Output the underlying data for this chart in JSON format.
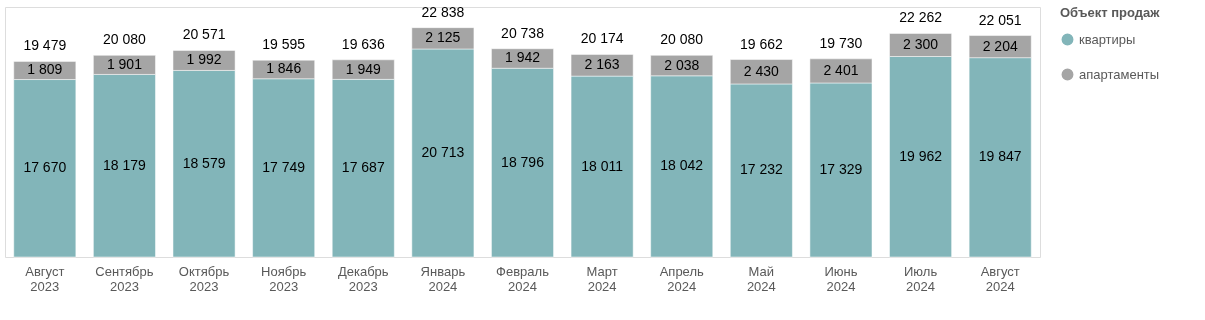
{
  "chart_data": {
    "type": "bar",
    "stacked": true,
    "data_labels": true,
    "legend": "right",
    "legend_title": "Объект продаж",
    "grid": false,
    "categories": [
      "Август 2023",
      "Сентябрь 2023",
      "Октябрь 2023",
      "Ноябрь 2023",
      "Декабрь 2023",
      "Январь 2024",
      "Февраль 2024",
      "Март 2024",
      "Апрель 2024",
      "Май 2024",
      "Июнь 2024",
      "Июль 2024",
      "Август 2024"
    ],
    "series": [
      {
        "name": "квартиры",
        "color": "#82b5b9",
        "values": [
          17670,
          18179,
          18579,
          17749,
          17687,
          20713,
          18796,
          18011,
          18042,
          17232,
          17329,
          19962,
          19847
        ]
      },
      {
        "name": "апартаменты",
        "color": "#a5a5a5",
        "values": [
          1809,
          1901,
          1992,
          1846,
          1949,
          2125,
          1942,
          2163,
          2038,
          2430,
          2401,
          2300,
          2204
        ]
      }
    ],
    "totals": [
      "19 479",
      "20 080",
      "20 571",
      "19 595",
      "19 636",
      "22 838",
      "20 738",
      "20 174",
      "20 080",
      "19 662",
      "19 730",
      "22 262",
      "22 051"
    ]
  }
}
